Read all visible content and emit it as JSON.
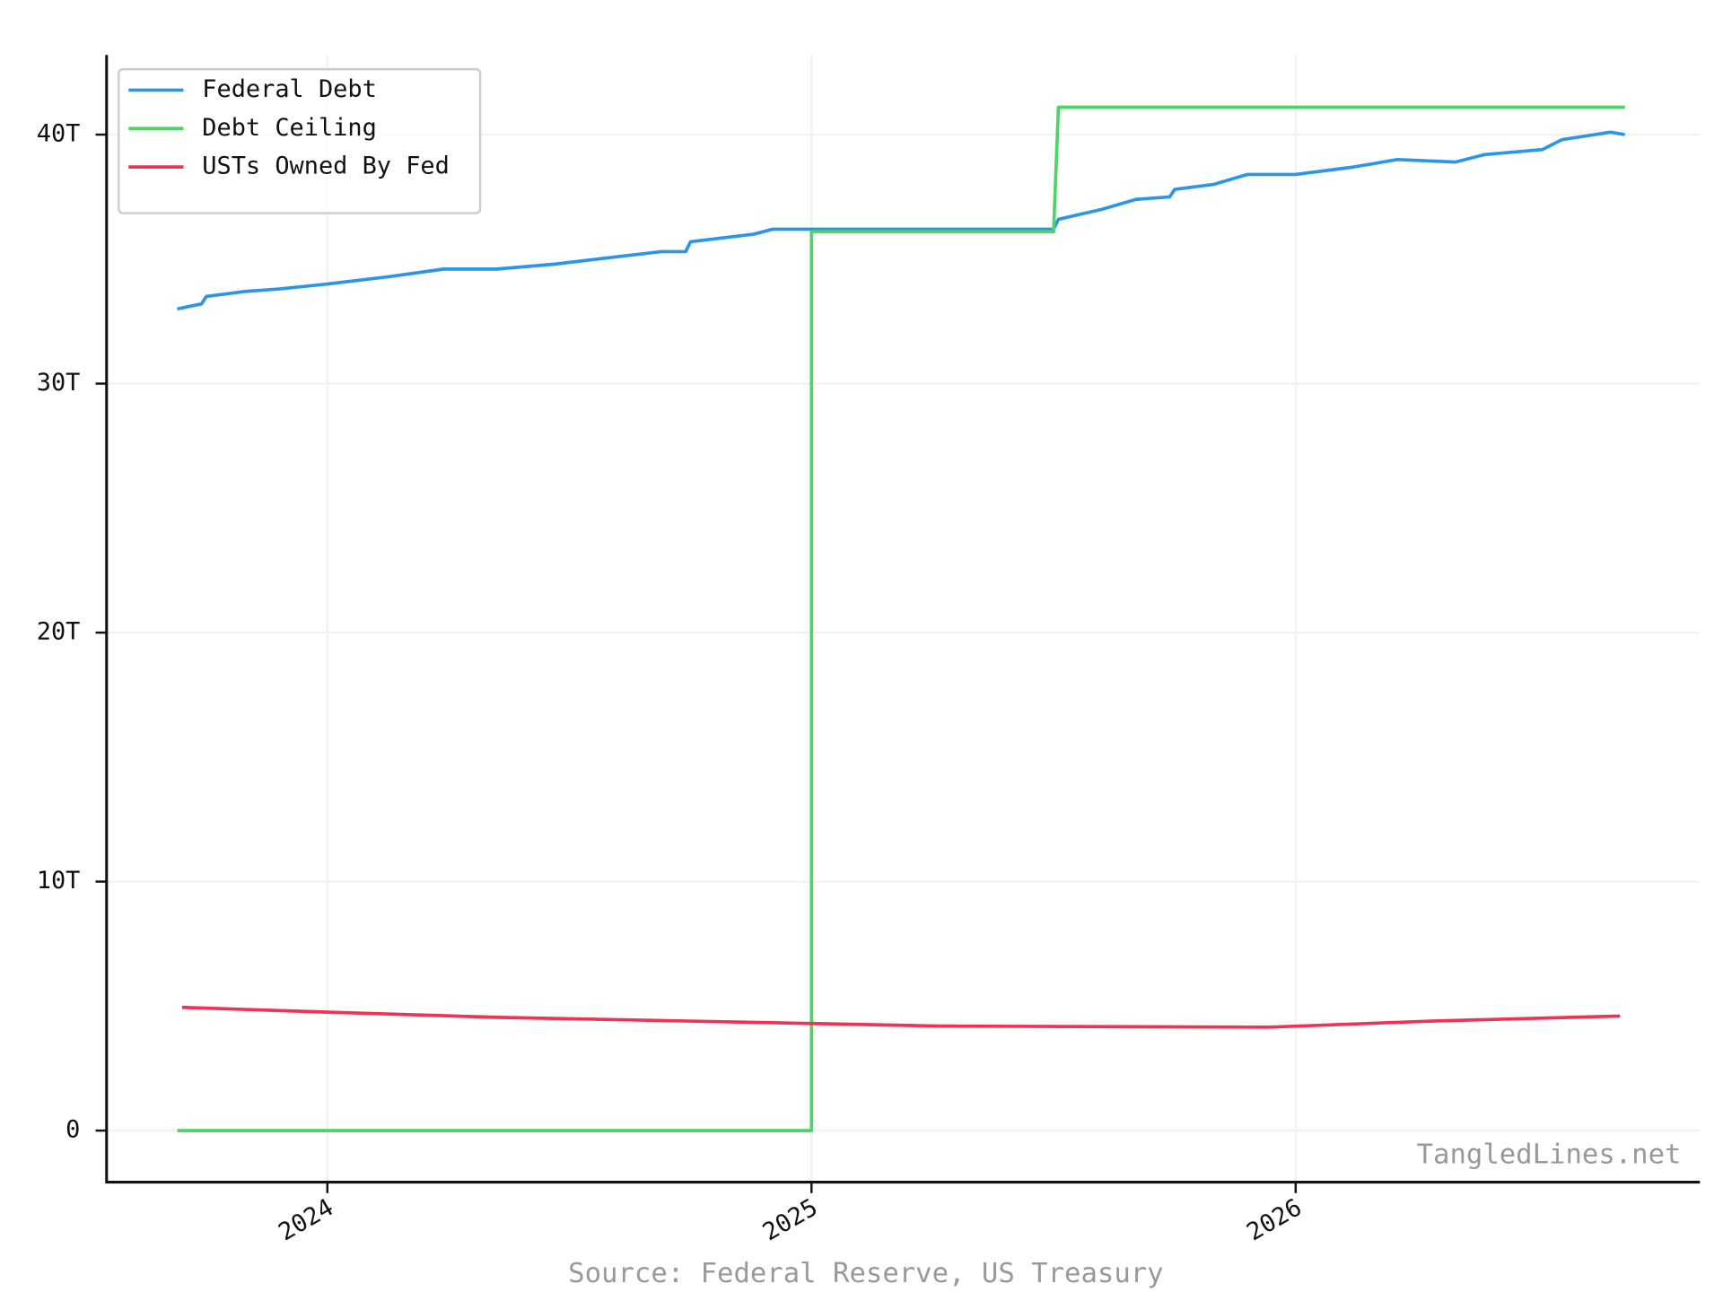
{
  "chart_data": {
    "type": "line",
    "source": "Source: Federal Reserve, US Treasury",
    "watermark": "TangledLines.net",
    "xlim": [
      2023.544,
      2026.835
    ],
    "xticks": [
      2024,
      2025,
      2026
    ],
    "ylim": [
      -2.07,
      43.2
    ],
    "yticks": [
      0,
      {
        "value": 10,
        "label": "10T"
      },
      {
        "value": 20,
        "label": "20T"
      },
      {
        "value": 30,
        "label": "30T"
      },
      {
        "value": 40,
        "label": "40T"
      }
    ],
    "grid": true,
    "legend": "upper left",
    "series": [
      {
        "name": "Federal Debt",
        "color": "#2b95e8",
        "x": [
          2023.69,
          2023.74,
          2023.75,
          2023.83,
          2023.9,
          2024.0,
          2024.13,
          2024.24,
          2024.35,
          2024.47,
          2024.6,
          2024.69,
          2024.74,
          2024.75,
          2024.88,
          2024.92,
          2025.0,
          2025.06,
          2025.5,
          2025.51,
          2025.6,
          2025.67,
          2025.74,
          2025.75,
          2025.83,
          2025.9,
          2026.0,
          2026.12,
          2026.21,
          2026.33,
          2026.39,
          2026.51,
          2026.55,
          2026.65,
          2026.68
        ],
        "values": [
          33.0,
          33.2,
          33.5,
          33.7,
          33.8,
          34.0,
          34.3,
          34.6,
          34.6,
          34.8,
          35.1,
          35.3,
          35.3,
          35.7,
          36.0,
          36.2,
          36.2,
          36.2,
          36.2,
          36.6,
          37.0,
          37.4,
          37.5,
          37.8,
          38.0,
          38.4,
          38.4,
          38.7,
          39.0,
          38.9,
          39.2,
          39.4,
          39.8,
          40.1,
          40.0
        ]
      },
      {
        "name": "Debt Ceiling",
        "color": "#4cd464",
        "x": [
          2023.69,
          2025.0,
          2025.0,
          2025.5,
          2025.51,
          2026.68
        ],
        "values": [
          0,
          0,
          36.1,
          36.1,
          41.1,
          41.1
        ]
      },
      {
        "name": "USTs Owned By Fed",
        "color": "#ee3355",
        "x": [
          2023.7,
          2024.01,
          2024.35,
          2025.0,
          2025.26,
          2025.94,
          2026.28,
          2026.67
        ],
        "values": [
          4.95,
          4.75,
          4.55,
          4.3,
          4.2,
          4.15,
          4.4,
          4.6
        ]
      }
    ]
  }
}
